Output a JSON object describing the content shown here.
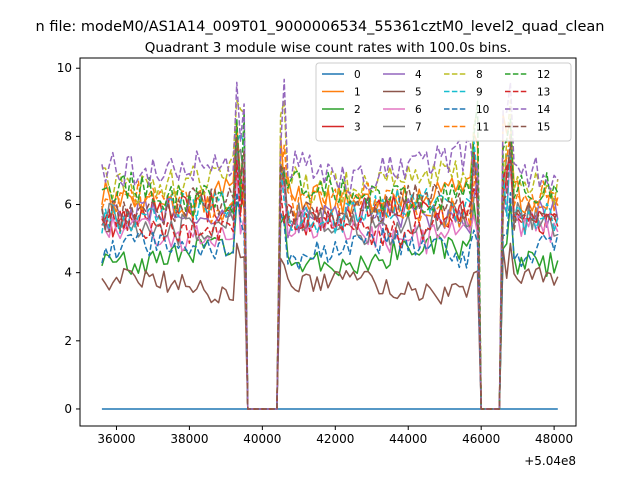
{
  "figure": {
    "suptitle": "n file: modeM0/AS1A14_009T01_9000006534_55361cztM0_level2_quad_clean"
  },
  "chart_data": {
    "type": "line",
    "title": "Quadrant 3 module wise count rates with 100.0s bins.",
    "xlabel": "",
    "ylabel": "",
    "x_offset_label": "+5.04e8",
    "xlim": [
      35000,
      48600
    ],
    "ylim": [
      -0.5,
      10.3
    ],
    "xticks": [
      36000,
      38000,
      40000,
      42000,
      44000,
      46000,
      48000
    ],
    "yticks": [
      0,
      2,
      4,
      6,
      8,
      10
    ],
    "x_range": [
      35600,
      48100
    ],
    "bin_width": 100,
    "gaps": [
      [
        39500,
        40500
      ],
      [
        45900,
        46600
      ]
    ],
    "grid": false,
    "legend": {
      "position": "top-right",
      "columns": 4
    },
    "series": [
      {
        "name": "0",
        "color": "#1f77b4",
        "dash": false,
        "level": 0.0
      },
      {
        "name": "1",
        "color": "#ff7f0e",
        "dash": false,
        "level": 6.2
      },
      {
        "name": "2",
        "color": "#2ca02c",
        "dash": false,
        "level": 4.5
      },
      {
        "name": "3",
        "color": "#d62728",
        "dash": false,
        "level": 5.7
      },
      {
        "name": "4",
        "color": "#9467bd",
        "dash": false,
        "level": 5.6
      },
      {
        "name": "5",
        "color": "#8c564b",
        "dash": false,
        "level": 3.6
      },
      {
        "name": "6",
        "color": "#e377c2",
        "dash": false,
        "level": 5.2
      },
      {
        "name": "7",
        "color": "#7f7f7f",
        "dash": false,
        "level": 5.5
      },
      {
        "name": "8",
        "color": "#bcbd22",
        "dash": true,
        "level": 6.7
      },
      {
        "name": "9",
        "color": "#17becf",
        "dash": true,
        "level": 5.8
      },
      {
        "name": "10",
        "color": "#1f77b4",
        "dash": true,
        "level": 4.7
      },
      {
        "name": "11",
        "color": "#ff7f0e",
        "dash": true,
        "level": 6.0
      },
      {
        "name": "12",
        "color": "#2ca02c",
        "dash": true,
        "level": 6.3
      },
      {
        "name": "13",
        "color": "#d62728",
        "dash": true,
        "level": 5.4
      },
      {
        "name": "14",
        "color": "#9467bd",
        "dash": true,
        "level": 7.1
      },
      {
        "name": "15",
        "color": "#8c564b",
        "dash": true,
        "level": 5.9
      }
    ]
  }
}
